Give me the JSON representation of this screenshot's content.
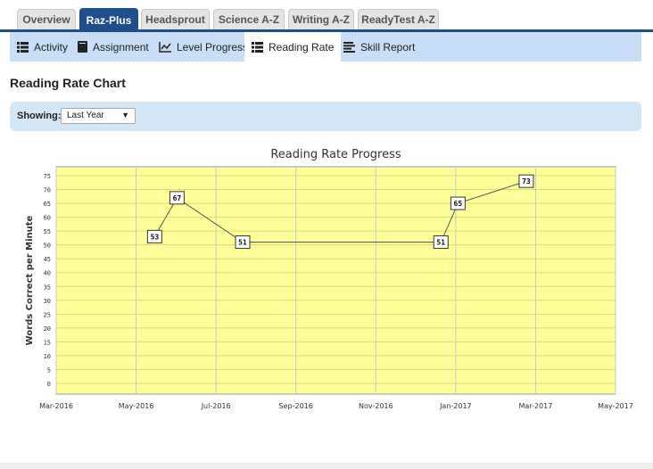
{
  "top_tabs": [
    {
      "label": "Overview",
      "active": false
    },
    {
      "label": "Raz-Plus",
      "active": true
    },
    {
      "label": "Headsprout",
      "active": false
    },
    {
      "label": "Science A-Z",
      "active": false
    },
    {
      "label": "Writing A-Z",
      "active": false
    },
    {
      "label": "ReadyTest A-Z",
      "active": false
    }
  ],
  "sub_nav": [
    {
      "label": "Activity",
      "icon": "list-icon",
      "active": false
    },
    {
      "label": "Assignment",
      "icon": "book-icon",
      "active": false
    },
    {
      "label": "Level Progress",
      "icon": "line-chart-icon",
      "active": false
    },
    {
      "label": "Reading Rate",
      "icon": "list-icon",
      "active": true
    },
    {
      "label": "Skill Report",
      "icon": "text-lines-icon",
      "active": false
    }
  ],
  "page_title": "Reading Rate Chart",
  "filter": {
    "label": "Showing:",
    "selected": "Last Year"
  },
  "colors": {
    "tab_active": "#1f4e8c",
    "subnav_bg": "#c9ddf6",
    "plot_bg": "#ffff99",
    "filter_bg": "#d4e7f6"
  },
  "chart_data": {
    "type": "line",
    "title": "Reading Rate Progress",
    "ylabel": "Words Correct per Minute",
    "xlabel": "",
    "x_ticks": [
      "Mar-2016",
      "May-2016",
      "Jul-2016",
      "Sep-2016",
      "Nov-2016",
      "Jan-2017",
      "Mar-2017",
      "May-2017"
    ],
    "xlim": [
      "2016-03-01",
      "2017-05-01"
    ],
    "ylim": [
      0,
      75
    ],
    "y_ticks": [
      0,
      5,
      10,
      15,
      20,
      25,
      30,
      35,
      40,
      45,
      50,
      55,
      60,
      65,
      70,
      75
    ],
    "grid": true,
    "series": [
      {
        "x": [
          "2016-05-15",
          "2016-06-01",
          "2016-07-21",
          "2016-12-19",
          "2017-01-01",
          "2017-02-22"
        ],
        "y": [
          53,
          67,
          51,
          51,
          65,
          73
        ]
      }
    ]
  }
}
